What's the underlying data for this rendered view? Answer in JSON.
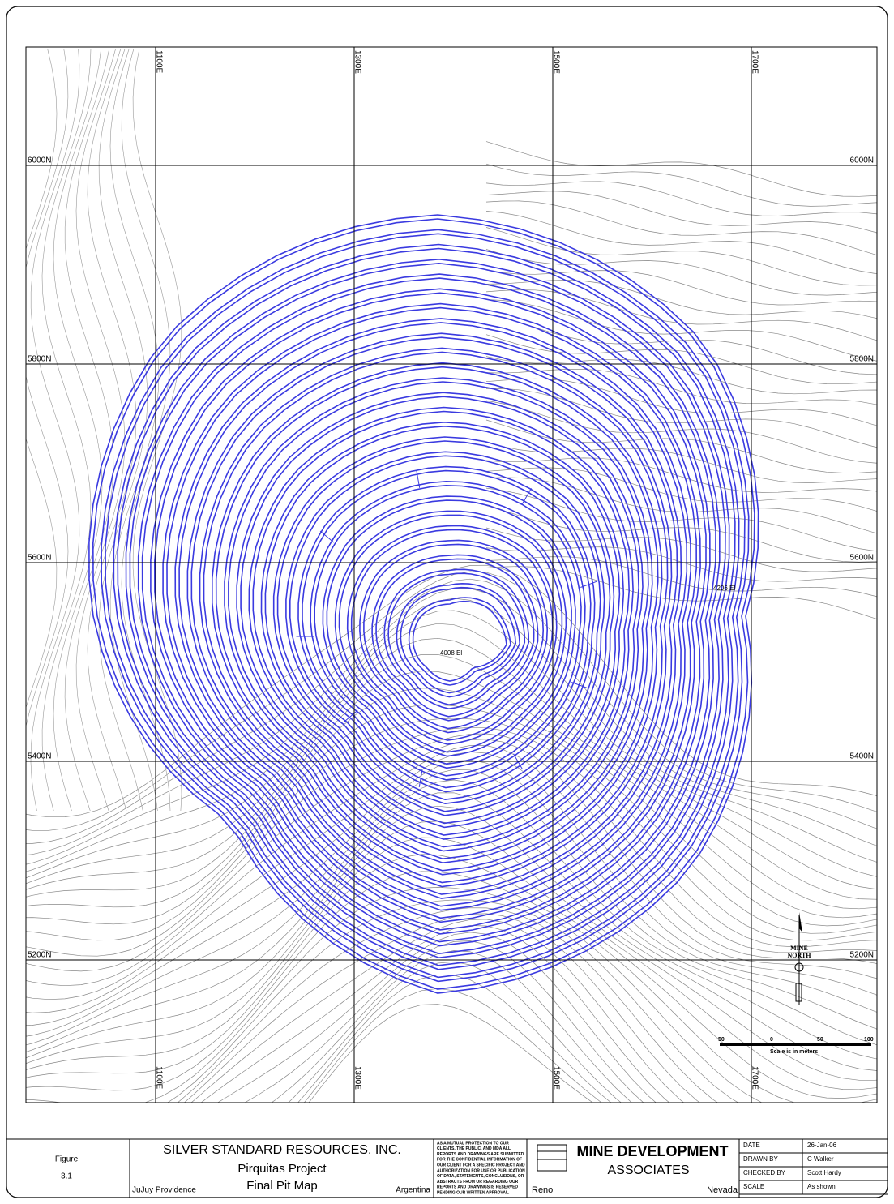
{
  "map": {
    "eastings": [
      "1100E",
      "1300E",
      "1500E",
      "1700E"
    ],
    "northings": [
      "6000N",
      "5800N",
      "5600N",
      "5400N",
      "5200N"
    ],
    "annotations": [
      "4206 El",
      "4008 El"
    ],
    "north_arrow": [
      "MINE",
      "NORTH"
    ],
    "scale": {
      "ticks": [
        "50",
        "0",
        "50",
        "100"
      ],
      "caption": "Scale is in meters"
    }
  },
  "title_block": {
    "figure": "Figure",
    "figure_number": "3.1",
    "company": "SILVER STANDARD RESOURCES, INC.",
    "project": "Pirquitas Project",
    "drawing": "Final Pit Map",
    "province": "JuJuy Providence",
    "country": "Argentina",
    "disclaimer": [
      "AS A MUTUAL PROTECTION TO OUR",
      "CLIENTS, THE PUBLIC, AND MDA ALL",
      "REPORTS AND DRAWINGS ARE SUBMITTED",
      "FOR THE CONFIDENTIAL INFORMATION OF",
      "OUR CLIENT FOR A SPECIFIC PROJECT AND",
      "AUTHORIZATION FOR USE OR PUBLICATION",
      "OF DATA, STATEMENTS, CONCLUSIONS, OR",
      "ABSTRACTS FROM OR REGARDING OUR",
      "REPORTS AND DRAWINGS IS RESERVED",
      "PENDING OUR WRITTEN APPROVAL."
    ],
    "firm": [
      "MINE DEVELOPMENT",
      "ASSOCIATES"
    ],
    "city": "Reno",
    "state": "Nevada",
    "table": [
      [
        "DATE",
        "26-Jan-06"
      ],
      [
        "DRAWN BY",
        "C Walker"
      ],
      [
        "CHECKED BY",
        "Scott Hardy"
      ],
      [
        "SCALE",
        "As shown"
      ]
    ]
  }
}
